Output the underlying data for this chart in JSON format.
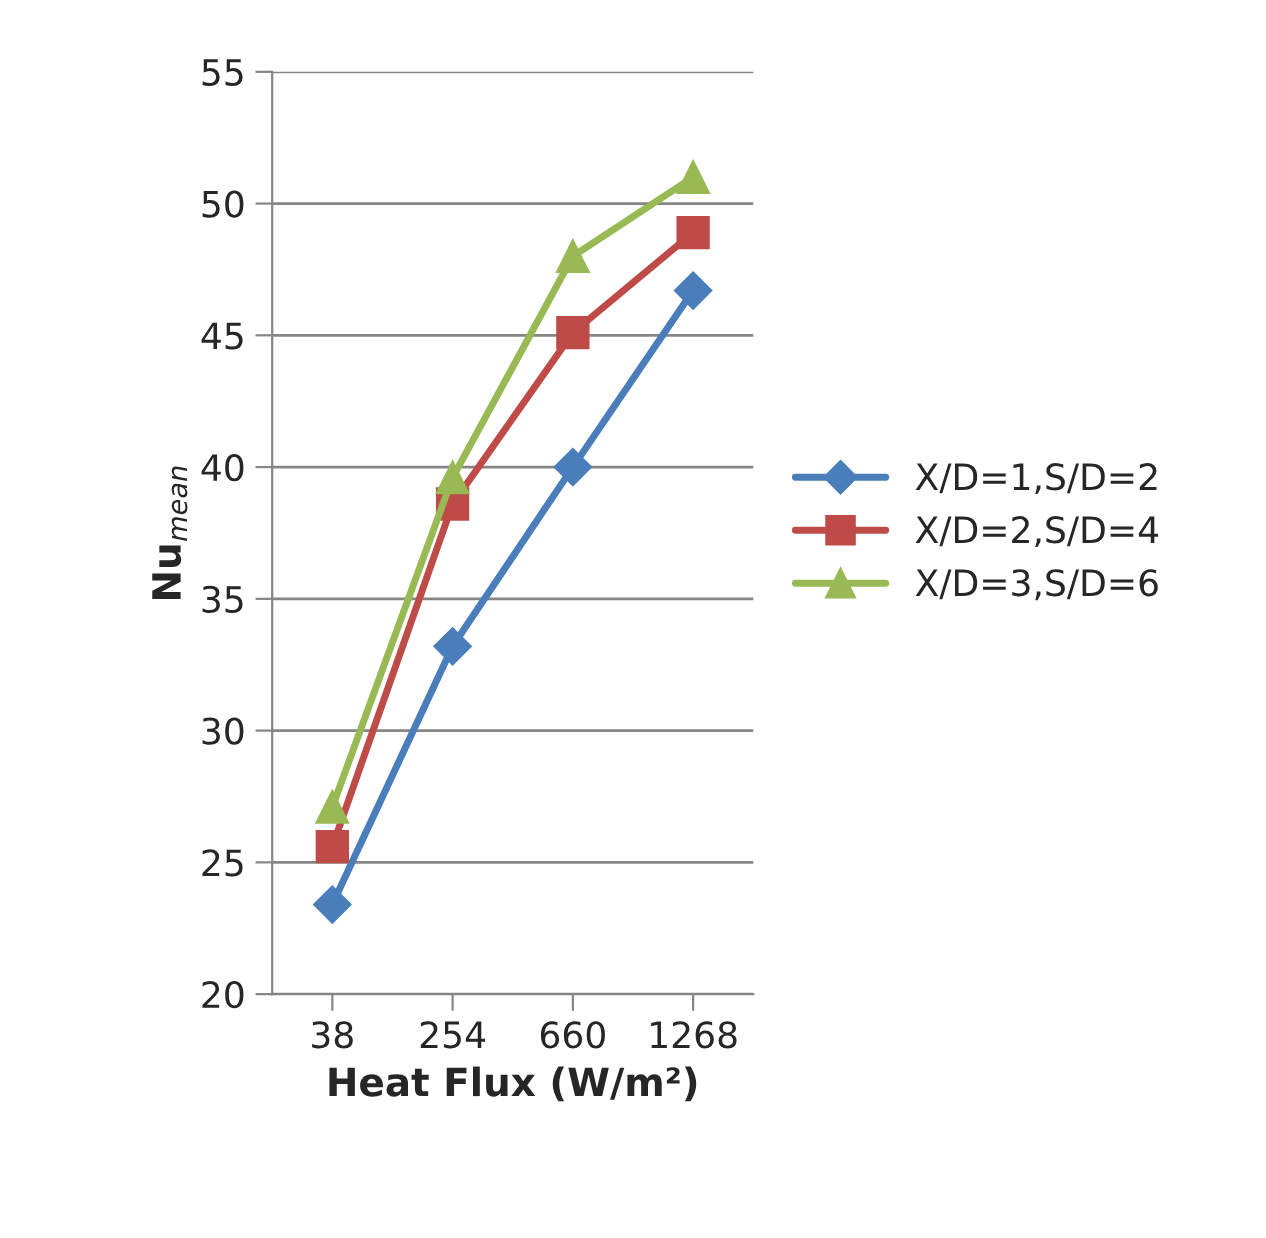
{
  "chart_data": {
    "type": "line",
    "xlabel": "Heat Flux (W/m²)",
    "ylabel": "Nu$_{mean}$",
    "categories": [
      "38",
      "254",
      "660",
      "1268"
    ],
    "series": [
      {
        "name": "X/D=1,S/D=2",
        "color": "#4a7ebb",
        "marker": "diamond",
        "values": [
          23.4,
          33.2,
          40.0,
          46.7
        ]
      },
      {
        "name": "X/D=2,S/D=4",
        "color": "#be4b48",
        "marker": "square",
        "values": [
          25.6,
          38.6,
          45.1,
          48.9
        ]
      },
      {
        "name": "X/D=3,S/D=6",
        "color": "#98b954",
        "marker": "triangle",
        "values": [
          27.1,
          39.6,
          48.0,
          51.0
        ]
      }
    ],
    "ylim": [
      20,
      55
    ],
    "yticks": [
      20,
      25,
      30,
      35,
      40,
      45,
      50,
      55
    ],
    "grid": "y",
    "legend": "right",
    "line_style": "solid"
  }
}
